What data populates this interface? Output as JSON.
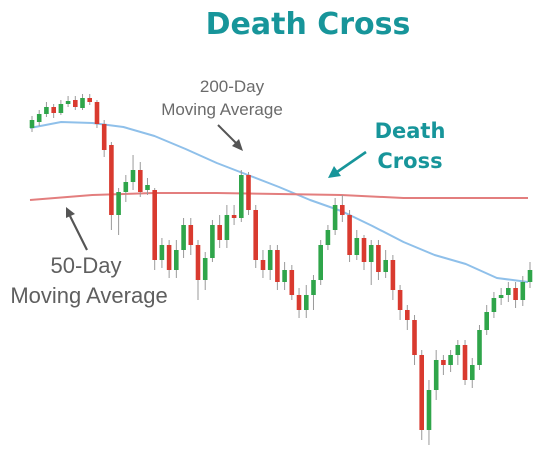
{
  "chart_data": {
    "type": "candlestick",
    "title": "Death Cross",
    "annotations": {
      "ma200_line1": "200-Day",
      "ma200_line2": "Moving Average",
      "cross_line1": "Death",
      "cross_line2": "Cross",
      "ma50_line1": "50-Day",
      "ma50_line2": "Moving Average"
    },
    "series": [
      {
        "kind": "line",
        "color": "#8fc0ea",
        "values": [
          [
            0,
            72
          ],
          [
            10,
            78
          ],
          [
            20,
            77
          ],
          [
            30,
            73
          ],
          [
            40,
            64
          ],
          [
            50,
            51
          ],
          [
            60,
            37
          ],
          [
            70,
            25
          ],
          [
            80,
            13
          ],
          [
            90,
            0
          ],
          [
            100,
            -11
          ],
          [
            110,
            -26
          ],
          [
            120,
            -42
          ],
          [
            130,
            -55
          ],
          [
            140,
            -64
          ],
          [
            150,
            -78
          ],
          [
            160,
            -82
          ]
        ]
      },
      {
        "kind": "line",
        "color": "#e37e7e",
        "values": [
          [
            0,
            0
          ],
          [
            20,
            5
          ],
          [
            40,
            7
          ],
          [
            60,
            7
          ],
          [
            80,
            6
          ],
          [
            100,
            5
          ],
          [
            120,
            2
          ],
          [
            140,
            2
          ],
          [
            160,
            2
          ]
        ]
      }
    ],
    "candles": [
      {
        "o": 72,
        "c": 80,
        "h": 84,
        "l": 68
      },
      {
        "o": 78,
        "c": 86,
        "h": 90,
        "l": 74
      },
      {
        "o": 86,
        "c": 93,
        "h": 98,
        "l": 83
      },
      {
        "o": 93,
        "c": 87,
        "h": 96,
        "l": 82
      },
      {
        "o": 87,
        "c": 96,
        "h": 100,
        "l": 85
      },
      {
        "o": 96,
        "c": 99,
        "h": 104,
        "l": 93
      },
      {
        "o": 100,
        "c": 93,
        "h": 104,
        "l": 90
      },
      {
        "o": 92,
        "c": 102,
        "h": 106,
        "l": 90
      },
      {
        "o": 102,
        "c": 98,
        "h": 106,
        "l": 95
      },
      {
        "o": 98,
        "c": 76,
        "h": 100,
        "l": 72
      },
      {
        "o": 76,
        "c": 50,
        "h": 80,
        "l": 43
      },
      {
        "o": 55,
        "c": -15,
        "h": 58,
        "l": -30
      },
      {
        "o": -15,
        "c": 8,
        "h": 12,
        "l": -35
      },
      {
        "o": 8,
        "c": 18,
        "h": 25,
        "l": -2
      },
      {
        "o": 18,
        "c": 30,
        "h": 45,
        "l": 10
      },
      {
        "o": 30,
        "c": 8,
        "h": 38,
        "l": 3
      },
      {
        "o": 10,
        "c": 15,
        "h": 22,
        "l": 5
      },
      {
        "o": 10,
        "c": -60,
        "h": 12,
        "l": -70
      },
      {
        "o": -60,
        "c": -45,
        "h": -38,
        "l": -68
      },
      {
        "o": -45,
        "c": -70,
        "h": -40,
        "l": -78
      },
      {
        "o": -70,
        "c": -50,
        "h": -40,
        "l": -78
      },
      {
        "o": -50,
        "c": -25,
        "h": -18,
        "l": -58
      },
      {
        "o": -25,
        "c": -45,
        "h": -18,
        "l": -55
      },
      {
        "o": -45,
        "c": -80,
        "h": -40,
        "l": -100
      },
      {
        "o": -80,
        "c": -58,
        "h": -52,
        "l": -90
      },
      {
        "o": -58,
        "c": -25,
        "h": -20,
        "l": -62
      },
      {
        "o": -25,
        "c": -40,
        "h": -15,
        "l": -48
      },
      {
        "o": -40,
        "c": -15,
        "h": -5,
        "l": -48
      },
      {
        "o": -15,
        "c": -18,
        "h": -5,
        "l": -25
      },
      {
        "o": -18,
        "c": 25,
        "h": 30,
        "l": -22
      },
      {
        "o": 25,
        "c": -10,
        "h": 28,
        "l": -15
      },
      {
        "o": -10,
        "c": -60,
        "h": -5,
        "l": -68
      },
      {
        "o": -60,
        "c": -70,
        "h": -50,
        "l": -78
      },
      {
        "o": -70,
        "c": -50,
        "h": -45,
        "l": -80
      },
      {
        "o": -50,
        "c": -82,
        "h": -45,
        "l": -90
      },
      {
        "o": -82,
        "c": -70,
        "h": -62,
        "l": -90
      },
      {
        "o": -70,
        "c": -95,
        "h": -65,
        "l": -100
      },
      {
        "o": -95,
        "c": -110,
        "h": -88,
        "l": -118
      },
      {
        "o": -110,
        "c": -95,
        "h": -85,
        "l": -118
      },
      {
        "o": -95,
        "c": -80,
        "h": -75,
        "l": -110
      },
      {
        "o": -80,
        "c": -45,
        "h": -40,
        "l": -85
      },
      {
        "o": -45,
        "c": -30,
        "h": -25,
        "l": -50
      },
      {
        "o": -30,
        "c": -5,
        "h": 2,
        "l": -35
      },
      {
        "o": -5,
        "c": -15,
        "h": 5,
        "l": -22
      },
      {
        "o": -15,
        "c": -55,
        "h": -10,
        "l": -62
      },
      {
        "o": -55,
        "c": -38,
        "h": -30,
        "l": -60
      },
      {
        "o": -38,
        "c": -62,
        "h": -35,
        "l": -70
      },
      {
        "o": -62,
        "c": -45,
        "h": -40,
        "l": -85
      },
      {
        "o": -45,
        "c": -72,
        "h": -40,
        "l": -80
      },
      {
        "o": -72,
        "c": -60,
        "h": -50,
        "l": -78
      },
      {
        "o": -60,
        "c": -90,
        "h": -55,
        "l": -100
      },
      {
        "o": -90,
        "c": -110,
        "h": -85,
        "l": -120
      },
      {
        "o": -110,
        "c": -120,
        "h": -105,
        "l": -130
      },
      {
        "o": -120,
        "c": -155,
        "h": -115,
        "l": -165
      },
      {
        "o": -155,
        "c": -230,
        "h": -150,
        "l": -240
      },
      {
        "o": -230,
        "c": -190,
        "h": -180,
        "l": -245
      },
      {
        "o": -190,
        "c": -160,
        "h": -150,
        "l": -200
      },
      {
        "o": -160,
        "c": -165,
        "h": -155,
        "l": -175
      },
      {
        "o": -165,
        "c": -155,
        "h": -150,
        "l": -172
      },
      {
        "o": -155,
        "c": -145,
        "h": -140,
        "l": -165
      },
      {
        "o": -145,
        "c": -180,
        "h": -140,
        "l": -185
      },
      {
        "o": -180,
        "c": -165,
        "h": -158,
        "l": -188
      },
      {
        "o": -165,
        "c": -130,
        "h": -125,
        "l": -170
      },
      {
        "o": -130,
        "c": -112,
        "h": -105,
        "l": -135
      },
      {
        "o": -112,
        "c": -98,
        "h": -92,
        "l": -118
      },
      {
        "o": -98,
        "c": -95,
        "h": -88,
        "l": -105
      },
      {
        "o": -95,
        "c": -88,
        "h": -82,
        "l": -102
      },
      {
        "o": -88,
        "c": -100,
        "h": -82,
        "l": -108
      },
      {
        "o": -100,
        "c": -82,
        "h": -76,
        "l": -106
      },
      {
        "o": -82,
        "c": -70,
        "h": -62,
        "l": -88
      }
    ]
  }
}
